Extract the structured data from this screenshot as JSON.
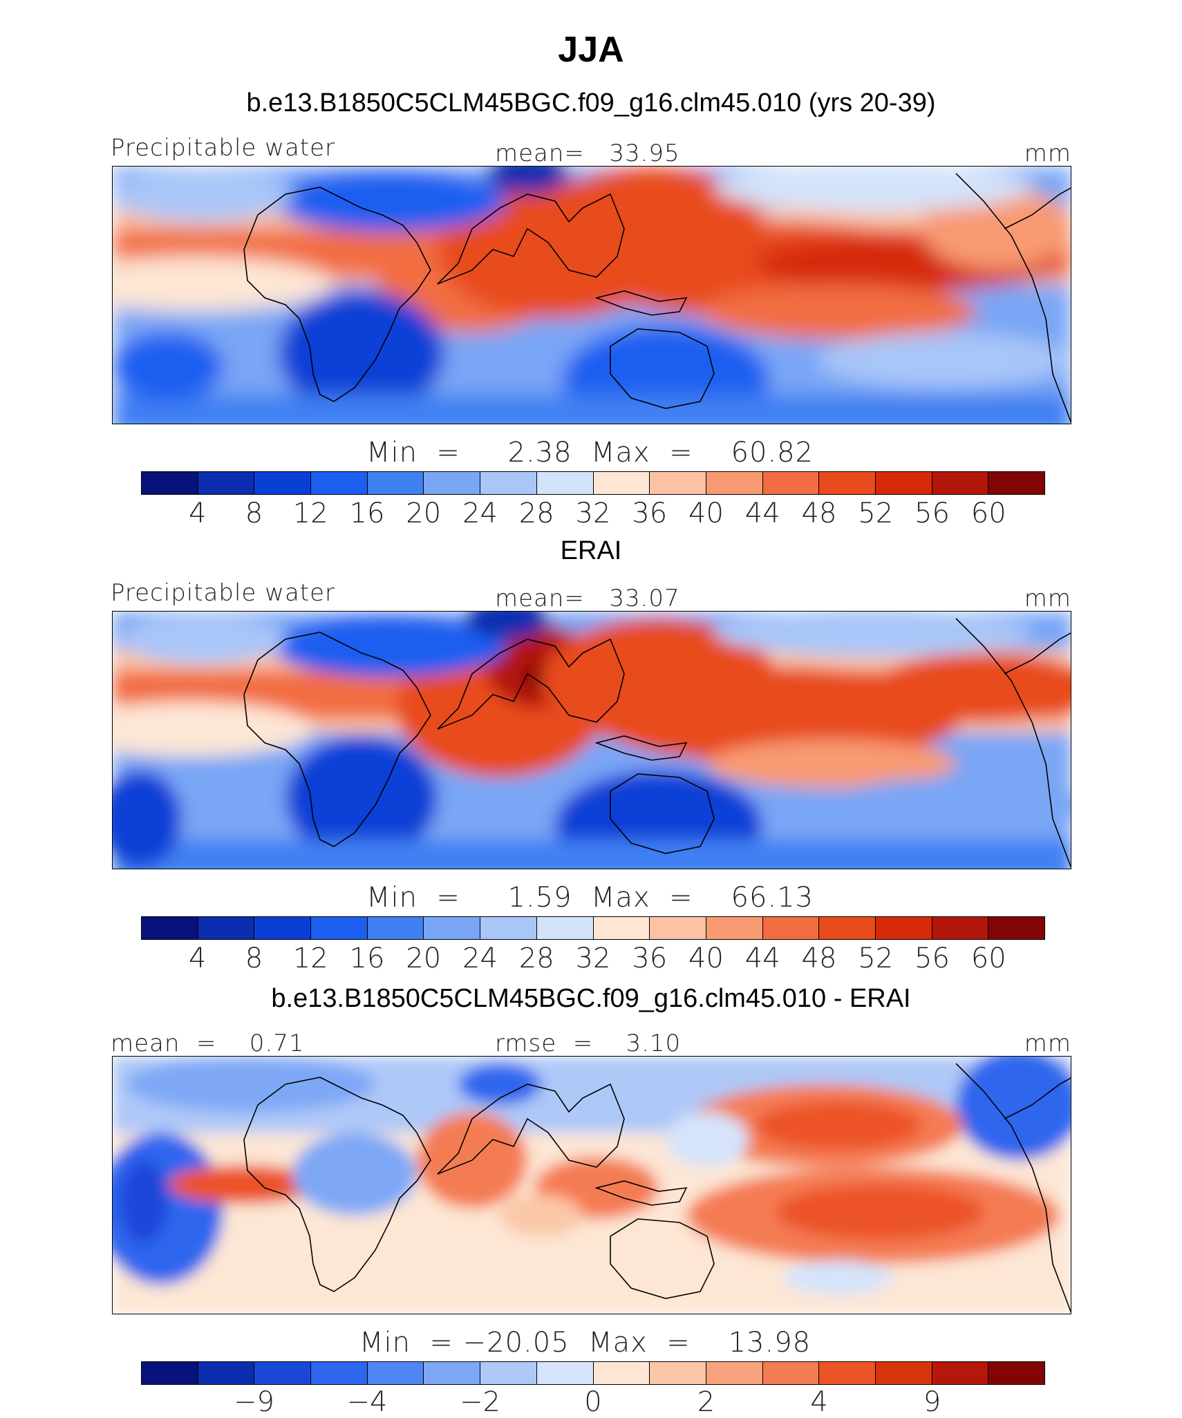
{
  "title": "JJA",
  "colors": {
    "model_scale": [
      "#08127a",
      "#0b2eb0",
      "#0a3fd6",
      "#1b5ef0",
      "#3f80f2",
      "#79a6f5",
      "#a9c6f8",
      "#d3e3fa",
      "#fde6d4",
      "#fbc3a4",
      "#f89a72",
      "#f26d42",
      "#e84b1c",
      "#d62a0a",
      "#b3160a",
      "#820404"
    ],
    "diff_scale": [
      "#08127a",
      "#0b2eb0",
      "#1b47d9",
      "#2f66ee",
      "#4f86f3",
      "#7ea7f6",
      "#aec8f8",
      "#d5e4fb",
      "#fde6d4",
      "#fbc7a8",
      "#f8a37e",
      "#f47c52",
      "#ec5326",
      "#d8340c",
      "#b5180a",
      "#820404"
    ]
  },
  "panels": [
    {
      "case_title": "b.e13.B1850C5CLM45BGC.f09_g16.clm45.010 (yrs 20-39)",
      "left_label": "Precipitable water",
      "center_label": "mean=   33.95",
      "right_label": "mm",
      "minmax": "Min  =     2.38  Max  =    60.82",
      "ticks": [
        "4",
        "8",
        "12",
        "16",
        "20",
        "24",
        "28",
        "32",
        "36",
        "40",
        "44",
        "48",
        "52",
        "56",
        "60"
      ],
      "map_kind": "model"
    },
    {
      "case_title": "ERAI",
      "left_label": "Precipitable water",
      "center_label": "mean=   33.07",
      "right_label": "mm",
      "minmax": "Min  =     1.59  Max  =    66.13",
      "ticks": [
        "4",
        "8",
        "12",
        "16",
        "20",
        "24",
        "28",
        "32",
        "36",
        "40",
        "44",
        "48",
        "52",
        "56",
        "60"
      ],
      "map_kind": "obs"
    },
    {
      "case_title": "b.e13.B1850C5CLM45BGC.f09_g16.clm45.010 - ERAI",
      "left_label": "mean  =    0.71",
      "center_label": "rmse  =    3.10",
      "right_label": "mm",
      "minmax": "Min  = −20.05  Max  =    13.98",
      "ticks": [
        "−9",
        "−4",
        "−2",
        "0",
        "2",
        "4",
        "9"
      ],
      "map_kind": "diff"
    }
  ]
}
